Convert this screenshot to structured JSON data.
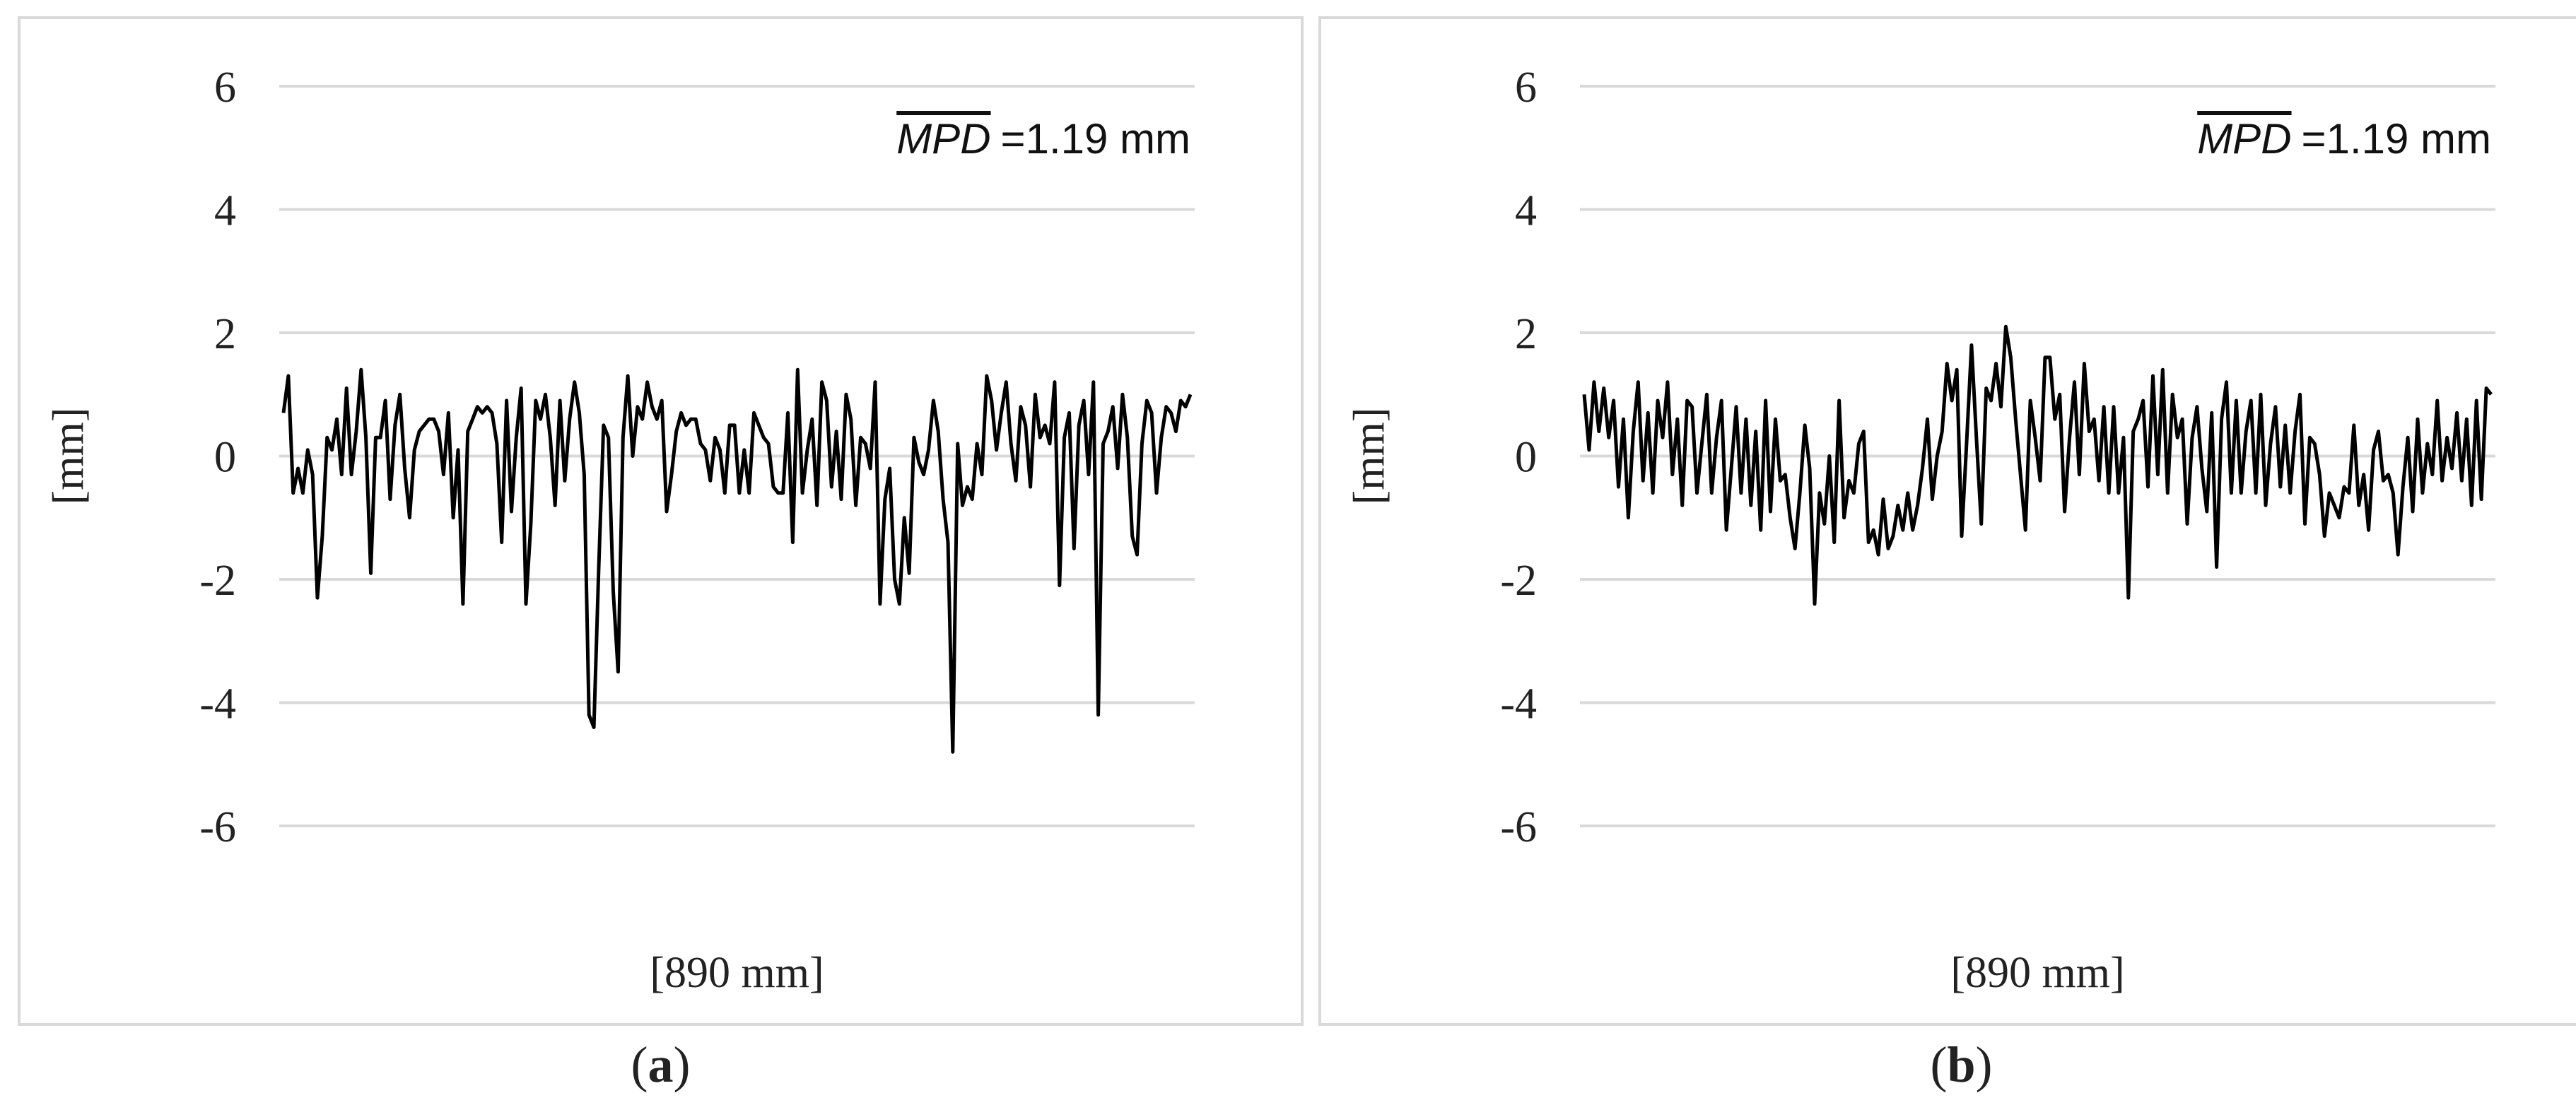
{
  "chart_data": [
    {
      "type": "line",
      "panel_caption_letter": "a",
      "xlabel": "[890 mm]",
      "ylabel": "[mm]",
      "ylim": [
        -6,
        6
      ],
      "yticks": [
        "6",
        "4",
        "2",
        "0",
        "-2",
        "-4",
        "-6"
      ],
      "grid": true,
      "annotation": {
        "symbol": "MPD",
        "text": "=1.19 mm"
      },
      "series": [
        {
          "color": "#000000",
          "y": [
            0.7,
            1.3,
            -0.6,
            -0.2,
            -0.6,
            0.1,
            -0.3,
            -2.3,
            -1.3,
            0.3,
            0.1,
            0.6,
            -0.3,
            1.1,
            -0.3,
            0.4,
            1.4,
            0.3,
            -1.9,
            0.3,
            0.3,
            0.9,
            -0.7,
            0.5,
            1.0,
            -0.2,
            -1.0,
            0.1,
            0.4,
            0.5,
            0.6,
            0.6,
            0.4,
            -0.3,
            0.7,
            -1.0,
            0.1,
            -2.4,
            0.4,
            0.6,
            0.8,
            0.7,
            0.8,
            0.7,
            0.2,
            -1.4,
            0.9,
            -0.9,
            0.3,
            1.1,
            -2.4,
            -1.1,
            0.9,
            0.6,
            1.0,
            0.3,
            -0.8,
            0.9,
            -0.4,
            0.6,
            1.2,
            0.7,
            -0.3,
            -4.2,
            -4.4,
            -1.8,
            0.5,
            0.3,
            -2.2,
            -3.5,
            0.3,
            1.3,
            0.0,
            0.8,
            0.6,
            1.2,
            0.8,
            0.6,
            0.9,
            -0.9,
            -0.3,
            0.4,
            0.7,
            0.5,
            0.6,
            0.6,
            0.2,
            0.1,
            -0.4,
            0.3,
            0.1,
            -0.6,
            0.5,
            0.5,
            -0.6,
            0.1,
            -0.6,
            0.7,
            0.5,
            0.3,
            0.2,
            -0.5,
            -0.6,
            -0.6,
            0.7,
            -1.4,
            1.4,
            -0.6,
            0.1,
            0.6,
            -0.8,
            1.2,
            0.9,
            -0.5,
            0.4,
            -0.7,
            1.0,
            0.6,
            -0.8,
            0.3,
            0.2,
            -0.2,
            1.2,
            -2.4,
            -0.7,
            -0.2,
            -2.0,
            -2.4,
            -1.0,
            -1.9,
            0.3,
            -0.1,
            -0.3,
            0.1,
            0.9,
            0.4,
            -0.7,
            -1.4,
            -4.8,
            0.2,
            -0.8,
            -0.5,
            -0.7,
            0.2,
            -0.3,
            1.3,
            0.9,
            0.1,
            0.7,
            1.2,
            0.2,
            -0.4,
            0.8,
            0.5,
            -0.5,
            1.0,
            0.3,
            0.5,
            0.2,
            1.2,
            -2.1,
            0.3,
            0.7,
            -1.5,
            0.5,
            0.9,
            -0.3,
            1.2,
            -4.2,
            0.2,
            0.4,
            0.8,
            -0.2,
            1.0,
            0.3,
            -1.3,
            -1.6,
            0.2,
            0.9,
            0.7,
            -0.6,
            0.3,
            0.8,
            0.7,
            0.4,
            0.9,
            0.8,
            1.0
          ]
        }
      ]
    },
    {
      "type": "line",
      "panel_caption_letter": "b",
      "xlabel": "[890 mm]",
      "ylabel": "[mm]",
      "ylim": [
        -6,
        6
      ],
      "yticks": [
        "6",
        "4",
        "2",
        "0",
        "-2",
        "-4",
        "-6"
      ],
      "grid": true,
      "annotation": {
        "symbol": "MPD",
        "text": "=1.19 mm"
      },
      "series": [
        {
          "color": "#000000",
          "y": [
            1.0,
            0.1,
            1.2,
            0.4,
            1.1,
            0.3,
            0.9,
            -0.5,
            0.6,
            -1.0,
            0.4,
            1.2,
            -0.4,
            0.7,
            -0.6,
            0.9,
            0.3,
            1.2,
            -0.3,
            0.6,
            -0.8,
            0.9,
            0.8,
            -0.6,
            0.2,
            1.0,
            -0.6,
            0.3,
            0.9,
            -1.2,
            -0.2,
            0.8,
            -0.6,
            0.6,
            -0.8,
            0.4,
            -1.2,
            0.9,
            -0.9,
            0.6,
            -0.4,
            -0.3,
            -1.0,
            -1.5,
            -0.6,
            0.5,
            -0.2,
            -2.4,
            -0.6,
            -1.1,
            0.0,
            -1.4,
            0.9,
            -1.0,
            -0.4,
            -0.6,
            0.2,
            0.4,
            -1.4,
            -1.2,
            -1.6,
            -0.7,
            -1.5,
            -1.3,
            -0.8,
            -1.2,
            -0.6,
            -1.2,
            -0.8,
            -0.2,
            0.6,
            -0.7,
            0.0,
            0.4,
            1.5,
            0.9,
            1.4,
            -1.3,
            0.2,
            1.8,
            0.3,
            -1.1,
            1.1,
            0.9,
            1.5,
            0.8,
            2.1,
            1.6,
            0.6,
            -0.3,
            -1.2,
            0.9,
            0.3,
            -0.4,
            1.6,
            1.6,
            0.6,
            1.0,
            -0.9,
            0.3,
            1.2,
            -0.3,
            1.5,
            0.4,
            0.6,
            -0.4,
            0.8,
            -0.6,
            0.8,
            -0.6,
            0.3,
            -2.3,
            0.4,
            0.6,
            0.9,
            -0.5,
            1.3,
            -0.3,
            1.4,
            -0.6,
            1.0,
            0.3,
            0.6,
            -1.1,
            0.3,
            0.8,
            -0.2,
            -0.9,
            0.7,
            -1.8,
            0.6,
            1.2,
            -0.6,
            0.9,
            -0.6,
            0.4,
            0.9,
            -0.6,
            1.0,
            -0.8,
            0.2,
            0.8,
            -0.5,
            0.5,
            -0.6,
            0.4,
            1.0,
            -1.1,
            0.3,
            0.2,
            -0.3,
            -1.3,
            -0.6,
            -0.8,
            -1.0,
            -0.5,
            -0.6,
            0.5,
            -0.8,
            -0.3,
            -1.2,
            0.1,
            0.4,
            -0.4,
            -0.3,
            -0.6,
            -1.6,
            -0.5,
            0.3,
            -0.9,
            0.6,
            -0.6,
            0.2,
            -0.3,
            0.9,
            -0.4,
            0.3,
            -0.2,
            0.7,
            -0.4,
            0.6,
            -0.8,
            0.9,
            -0.7,
            1.1,
            1.0
          ]
        }
      ]
    }
  ]
}
